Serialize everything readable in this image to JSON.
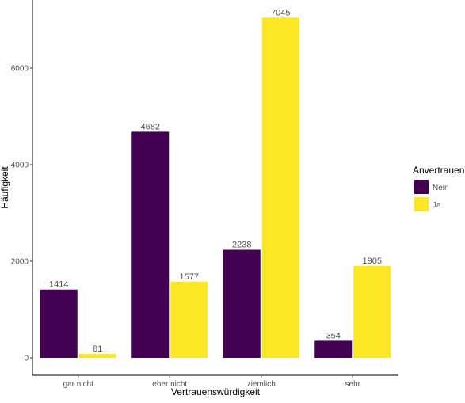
{
  "chart_data": {
    "type": "bar",
    "categories": [
      "gar nicht",
      "eher nicht",
      "ziemlich",
      "sehr"
    ],
    "series": [
      {
        "name": "Nein",
        "color": "#440154",
        "values": [
          1414,
          4682,
          2238,
          354
        ]
      },
      {
        "name": "Ja",
        "color": "#FDE725",
        "values": [
          81,
          1577,
          7045,
          1905
        ]
      }
    ],
    "xlabel": "Vertrauenswürdigkeit",
    "ylabel": "Häufigkeit",
    "yticks": [
      0,
      2000,
      4000,
      6000
    ],
    "ylim": [
      0,
      7400
    ],
    "legend": {
      "title": "Anvertrauen",
      "position": "right"
    },
    "grid": false,
    "data_labels": true
  }
}
